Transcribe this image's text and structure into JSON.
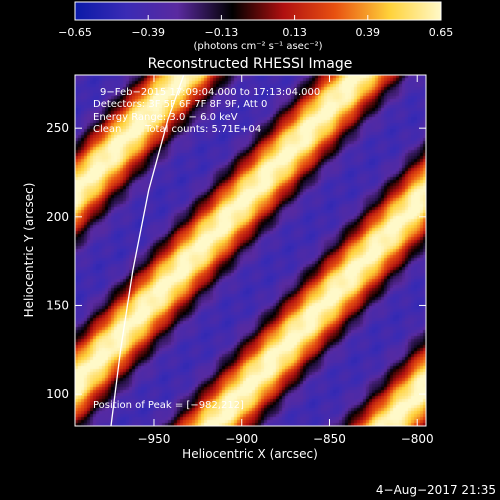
{
  "chart_data": {
    "type": "heatmap",
    "title": "Reconstructed RHESSI Image",
    "xlabel": "Heliocentric X (arcsec)",
    "ylabel": "Heliocentric Y (arcsec)",
    "xlim": [
      -995,
      -795
    ],
    "ylim": [
      82,
      280
    ],
    "x_ticks": [
      {
        "value": -950,
        "label": "−950"
      },
      {
        "value": -900,
        "label": "−900"
      },
      {
        "value": -850,
        "label": "−850"
      },
      {
        "value": -800,
        "label": "−800"
      }
    ],
    "y_ticks": [
      {
        "value": 100,
        "label": "100"
      },
      {
        "value": 150,
        "label": "150"
      },
      {
        "value": 200,
        "label": "200"
      },
      {
        "value": 250,
        "label": "250"
      }
    ],
    "colorbar": {
      "range": [
        -0.65,
        0.65
      ],
      "ticks": [
        {
          "value": -0.65,
          "label": "−0.65"
        },
        {
          "value": -0.39,
          "label": "−0.39"
        },
        {
          "value": -0.13,
          "label": "−0.13"
        },
        {
          "value": 0.13,
          "label": "0.13"
        },
        {
          "value": 0.39,
          "label": "0.39"
        },
        {
          "value": 0.65,
          "label": "0.65"
        }
      ],
      "unit_label": "(photons cm⁻² s⁻¹ asec⁻²)",
      "colormap": [
        "#0a1aa8",
        "#3a2bb5",
        "#5a2aa0",
        "#000000",
        "#b01010",
        "#e85010",
        "#ffd23a",
        "#fff9c8"
      ]
    },
    "annotations": [
      "9−Feb−2015 17:09:04.000 to 17:13:04.000",
      "Detectors: 3F 5F 6F 7F 8F 9F, Att 0",
      "Energy Range: 3.0 − 6.0 keV",
      "Clean",
      "Total counts: 5.71E+04"
    ],
    "peak_label": "Position of Peak = [−982,212]",
    "limb_curve": [
      {
        "x": -974.5,
        "y": 82
      },
      {
        "x": -969,
        "y": 125
      },
      {
        "x": -962,
        "y": 170
      },
      {
        "x": -953,
        "y": 215
      },
      {
        "x": -942,
        "y": 255
      },
      {
        "x": -932,
        "y": 283
      }
    ]
  },
  "footer": {
    "date_stamp": "4−Aug−2017 21:35"
  }
}
